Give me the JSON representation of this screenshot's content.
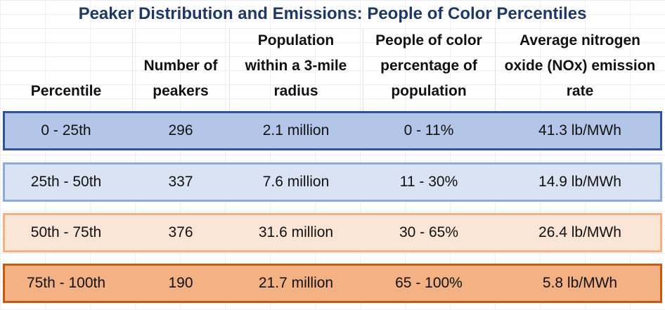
{
  "chart_data": {
    "type": "table",
    "title": "Peaker Distribution and Emissions: People of Color Percentiles",
    "columns": [
      [
        "Percentile"
      ],
      [
        "Number of",
        "peakers"
      ],
      [
        "Population",
        "within a 3-mile",
        "radius"
      ],
      [
        "People of color",
        "percentage of",
        "population"
      ],
      [
        "Average nitrogen",
        "oxide (NOx) emission",
        "rate"
      ]
    ],
    "rows": [
      [
        "0 - 25th",
        "296",
        "2.1 million",
        "0 - 11%",
        "41.3 lb/MWh"
      ],
      [
        "25th - 50th",
        "337",
        "7.6 million",
        "11 - 30%",
        "14.9 lb/MWh"
      ],
      [
        "50th - 75th",
        "376",
        "31.6 million",
        "30 - 65%",
        "26.4 lb/MWh"
      ],
      [
        "75th - 100th",
        "190",
        "21.7 million",
        "65 - 100%",
        "5.8 lb/MWh"
      ]
    ],
    "row_colors": [
      {
        "fill": "#b4c6e7",
        "border": "#2f5496"
      },
      {
        "fill": "#dae3f3",
        "border": "#8eaadb"
      },
      {
        "fill": "#fbe5d6",
        "border": "#f4b183"
      },
      {
        "fill": "#f4b183",
        "border": "#c55a11"
      }
    ],
    "grid": true
  }
}
